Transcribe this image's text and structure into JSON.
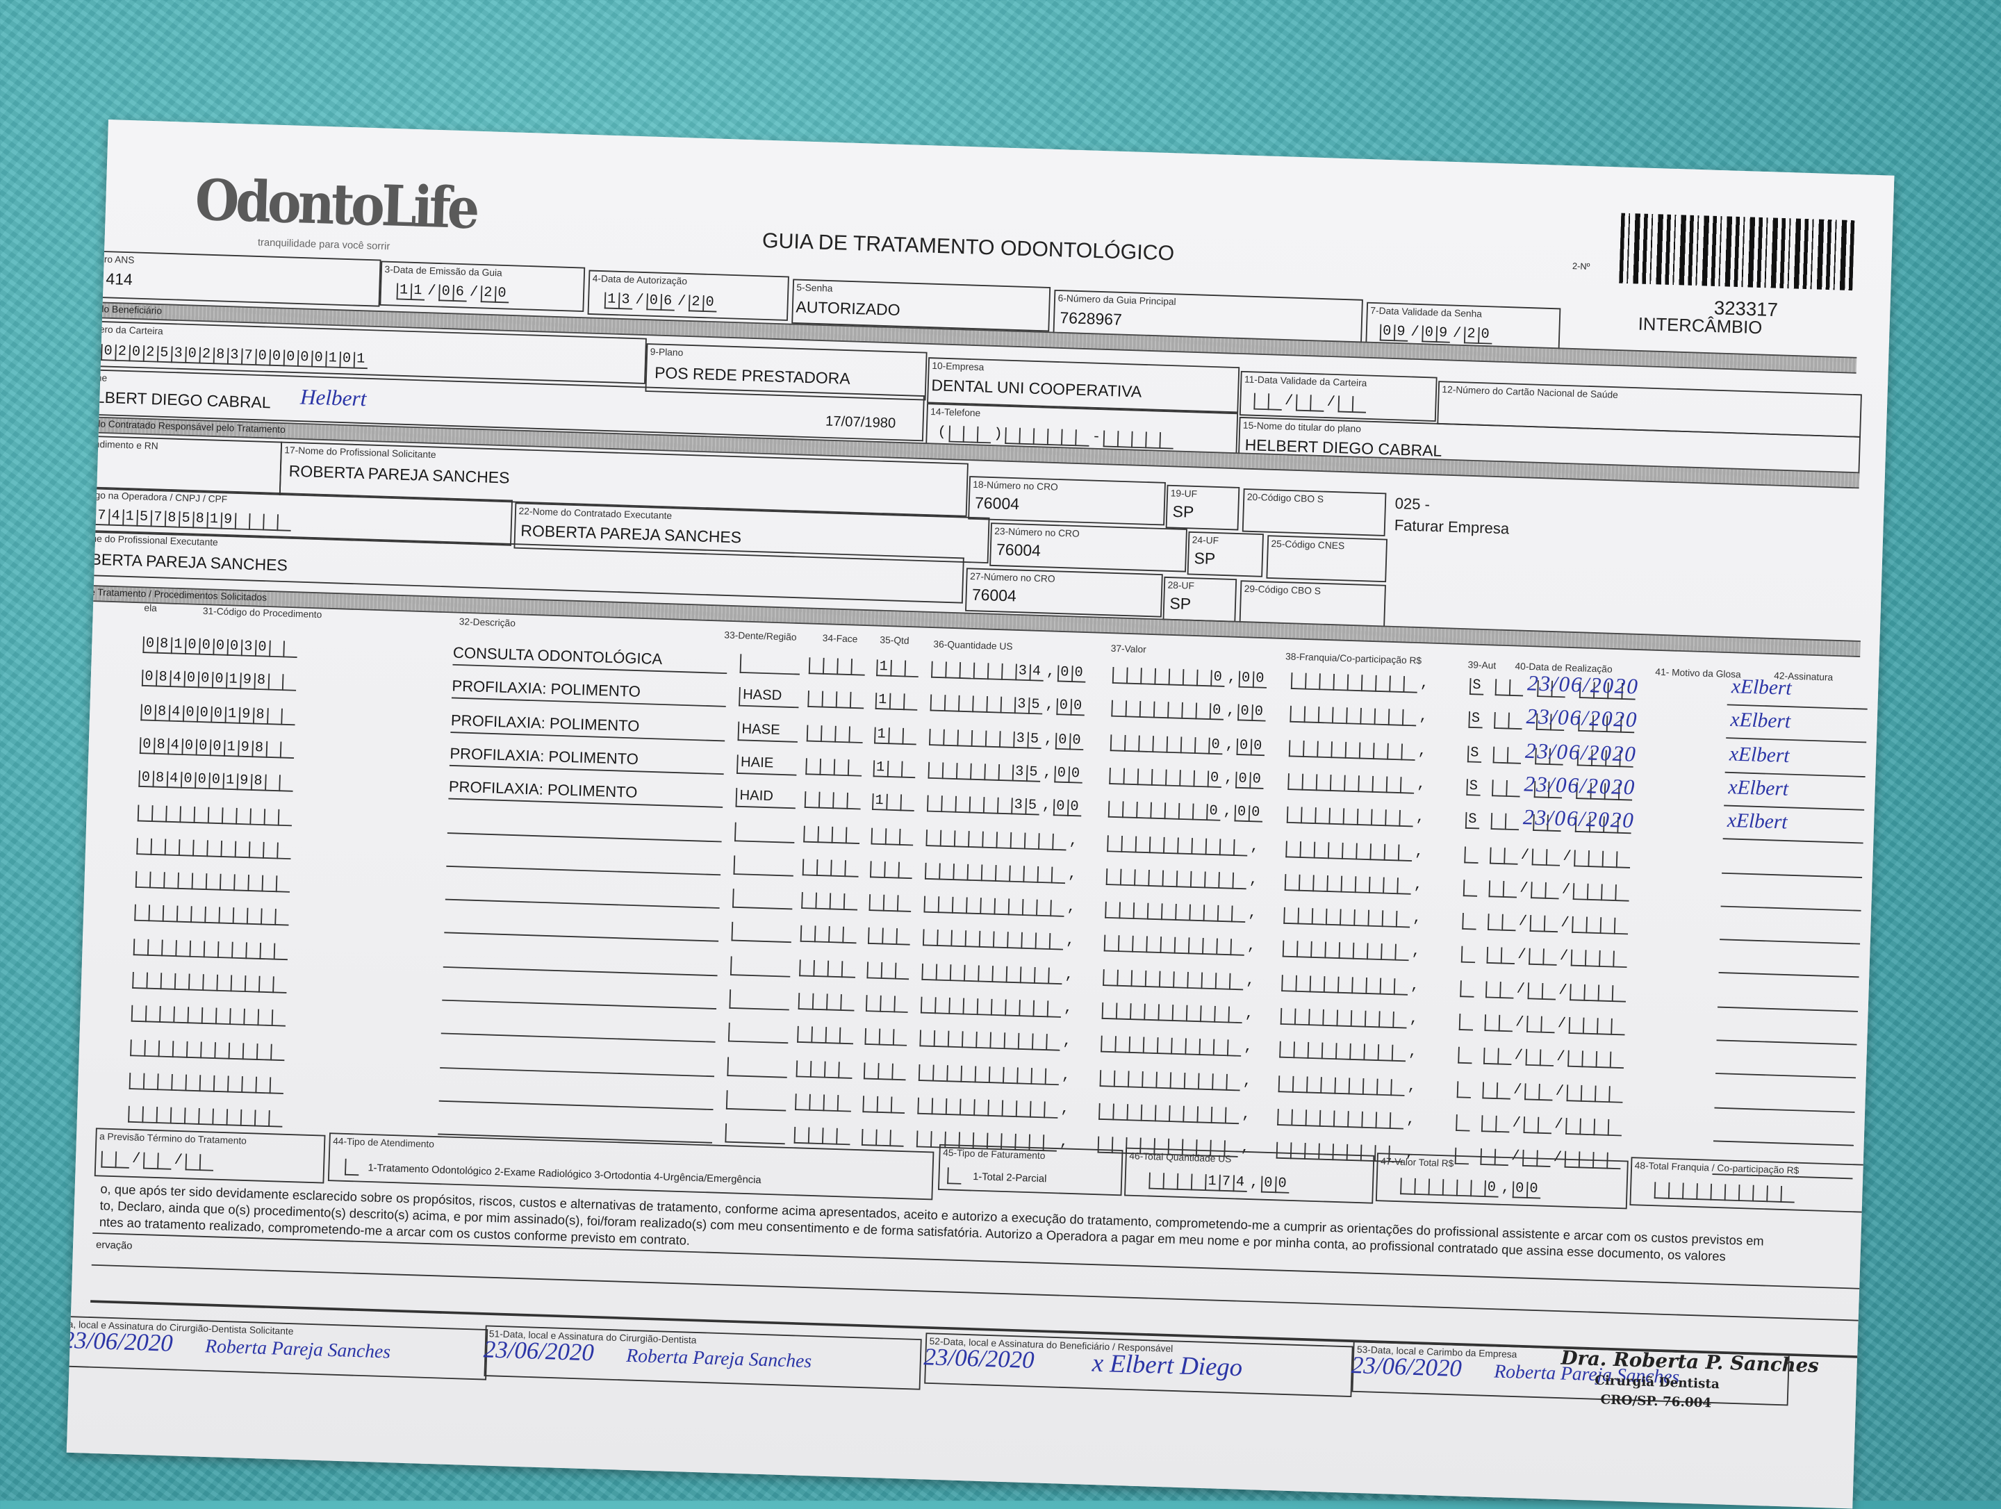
{
  "colors": {
    "background": "#4fb1b6",
    "paper": "#f2f2f4",
    "ink": "#2b35a6",
    "print": "#222222"
  },
  "header": {
    "logo": "OdontoLife",
    "tagline": "tranquilidade para você sorrir",
    "title": "GUIA DE TRATAMENTO ODONTOLÓGICO",
    "guide_number_label": "2-Nº",
    "guide_number": "323317",
    "guide_type": "INTERCÂMBIO"
  },
  "sections": {
    "beneficiary": "do Beneficiário",
    "contracted": "do Contratado Responsável pelo Tratamento",
    "procedures": "e Tratamento / Procedimentos Solicitados"
  },
  "fields": {
    "ans": {
      "label": "tro ANS",
      "value": "414"
    },
    "issue_date": {
      "label": "3-Data de Emissão da Guia",
      "value": "11/06/20"
    },
    "auth_date": {
      "label": "4-Data de Autorização",
      "value": "13/06/20"
    },
    "password": {
      "label": "5-Senha",
      "value": "AUTORIZADO"
    },
    "main_guide": {
      "label": "6-Número da Guia Principal",
      "value": "7628967"
    },
    "password_validity": {
      "label": "7-Data Validade da Senha",
      "value": "09/09/20"
    },
    "card_number": {
      "label": "ero da Carteira",
      "value": "0202530283700000101"
    },
    "plan": {
      "label": "9-Plano",
      "value": "POS REDE PRESTADORA"
    },
    "company": {
      "label": "10-Empresa",
      "value": "DENTAL UNI  COOPERATIVA"
    },
    "card_validity": {
      "label": "11-Data Validade da Carteira",
      "value": "  /  /  "
    },
    "sus_card": {
      "label": "12-Número do Cartão Nacional de Saúde",
      "value": ""
    },
    "name": {
      "label": "ne",
      "value": "LBERT DIEGO CABRAL",
      "handwritten": "Helbert",
      "birth_date": "17/07/1980"
    },
    "phone": {
      "label": "14-Telefone",
      "value": "(   )      -     "
    },
    "holder": {
      "label": "15-Nome do titular do plano",
      "value": "HELBERT DIEGO CABRAL"
    },
    "rn": {
      "label": "ndimento e RN",
      "value": ""
    },
    "requester": {
      "label": "17-Nome do Profissional Solicitante",
      "value": "ROBERTA PAREJA SANCHES"
    },
    "cro_18": {
      "label": "18-Número no CRO",
      "value": "76004"
    },
    "uf_19": {
      "label": "19-UF",
      "value": "SP"
    },
    "cbo_20": {
      "label": "20-Código CBO S",
      "value": ""
    },
    "billing_note": {
      "code": "025 -",
      "text": "Faturar Empresa"
    },
    "operator_code": {
      "label": "igo na Operadora / CNPJ / CPF",
      "value": "7415785819"
    },
    "executor_contracted": {
      "label": "22-Nome do Contratado Executante",
      "value": "ROBERTA PAREJA SANCHES"
    },
    "cro_23": {
      "label": "23-Número no CRO",
      "value": "76004"
    },
    "uf_24": {
      "label": "24-UF",
      "value": "SP"
    },
    "cnes_25": {
      "label": "25-Código CNES",
      "value": ""
    },
    "executor": {
      "label": "ne do Profissional Executante",
      "value": "BERTA PAREJA SANCHES"
    },
    "cro_27": {
      "label": "27-Número no CRO",
      "value": "76004"
    },
    "uf_28": {
      "label": "28-UF",
      "value": "SP"
    },
    "cbo_29": {
      "label": "29-Código CBO S",
      "value": ""
    }
  },
  "table": {
    "headers": [
      "ela",
      "31-Código do Procedimento",
      "32-Descrição",
      "33-Dente/Região",
      "34-Face",
      "35-Qtd",
      "36-Quantidade US",
      "37-Valor",
      "38-Franquia/Co-participação R$",
      "39-Aut",
      "40-Data de Realização",
      "41- Motivo da Glosa",
      "42-Assinatura"
    ],
    "rows": [
      {
        "code": "081000030",
        "description": "CONSULTA ODONTOLÓGICA",
        "tooth": "",
        "face": "",
        "qty": "1",
        "us": "34,00",
        "value": "0,00",
        "copay": "",
        "aut": "S",
        "date": "23/06/2020",
        "signature": "xElbert"
      },
      {
        "code": "084000198",
        "description": "PROFILAXIA: POLIMENTO",
        "tooth": "HASD",
        "face": "",
        "qty": "1",
        "us": "35,00",
        "value": "0,00",
        "copay": "",
        "aut": "S",
        "date": "23/06/2020",
        "signature": "xElbert"
      },
      {
        "code": "084000198",
        "description": "PROFILAXIA: POLIMENTO",
        "tooth": "HASE",
        "face": "",
        "qty": "1",
        "us": "35,00",
        "value": "0,00",
        "copay": "",
        "aut": "S",
        "date": "23/06/2020",
        "signature": "xElbert"
      },
      {
        "code": "084000198",
        "description": "PROFILAXIA: POLIMENTO",
        "tooth": "HAIE",
        "face": "",
        "qty": "1",
        "us": "35,00",
        "value": "0,00",
        "copay": "",
        "aut": "S",
        "date": "23/06/2020",
        "signature": "xElbert"
      },
      {
        "code": "084000198",
        "description": "PROFILAXIA: POLIMENTO",
        "tooth": "HAID",
        "face": "",
        "qty": "1",
        "us": "35,00",
        "value": "0,00",
        "copay": "",
        "aut": "S",
        "date": "23/06/2020",
        "signature": "xElbert"
      }
    ],
    "empty_rows": 10
  },
  "footer": {
    "end_forecast": {
      "label": "a Previsão Término do Tratamento",
      "value": "  /  /  "
    },
    "service_type": {
      "label": "44-Tipo de Atendimento",
      "options": "1-Tratamento Odontológico  2-Exame Radiológico  3-Ortodontia  4-Urgência/Emergência",
      "value": ""
    },
    "billing_type": {
      "label": "45-Tipo de Faturamento",
      "options": "1-Total  2-Parcial",
      "value": ""
    },
    "total_us": {
      "label": "46-Total Quantidade US",
      "value": "174,00"
    },
    "total_value": {
      "label": "47-Valor Total R$",
      "value": "0,00"
    },
    "total_copay": {
      "label": "48-Total Franquia / Co-participação R$",
      "value": ""
    },
    "declaration": [
      "o, que após ter sido devidamente esclarecido sobre os propósitos, riscos, custos e alternativas de tratamento, conforme acima apresentados, aceito e autorizo a execução do tratamento, comprometendo-me a cumprir as orientações do profissional assistente e arcar com os custos previstos em",
      "to, Declaro, ainda que o(s) procedimento(s) descrito(s) acima, e por mim assinado(s), foi/foram realizado(s) com meu consentimento e de forma satisfatória. Autorizo a Operadora a pagar em meu nome e por minha conta, ao profissional contratado que assina esse documento, os valores",
      "ntes ao tratamento realizado, comprometendo-me a arcar com os custos conforme previsto em contrato."
    ],
    "observation_label": "ervação",
    "signatures": [
      {
        "label": "a, local e Assinatura do Cirurgião-Dentista Solicitante",
        "date": "23/06/2020",
        "signature": "Roberta Pareja Sanches"
      },
      {
        "label": "51-Data, local e Assinatura do Cirurgião-Dentista",
        "date": "23/06/2020",
        "signature": "Roberta Pareja Sanches"
      },
      {
        "label": "52-Data, local e Assinatura do Beneficiário / Responsável",
        "date": "23/06/2020",
        "signature": "x Elbert Diego"
      },
      {
        "label": "53-Data, local e Carimbo da Empresa",
        "date": "23/06/2020",
        "signature": "Roberta Pareja Sanches"
      }
    ],
    "stamp": {
      "name": "Dra. Roberta P. Sanches",
      "title": "Cirurgiã Dentista",
      "cro": "CRO/SP. 76.004"
    }
  }
}
